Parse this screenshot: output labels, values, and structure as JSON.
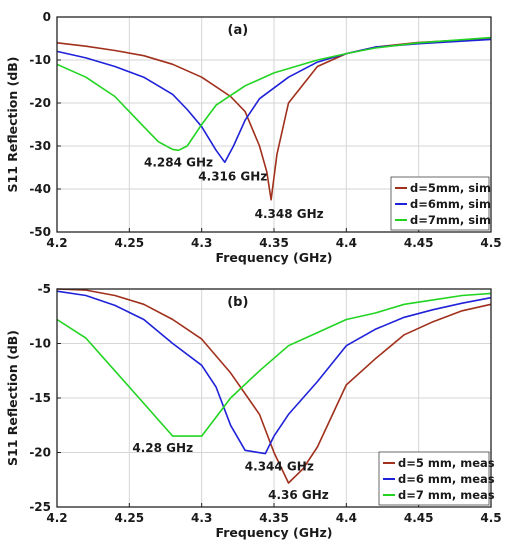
{
  "chart_data": [
    {
      "type": "line",
      "panel_label": "(a)",
      "xlabel": "Frequency (GHz)",
      "ylabel": "S11 Reflection (dB)",
      "xlim": [
        4.2,
        4.5
      ],
      "ylim": [
        -50,
        0
      ],
      "xticks": [
        4.2,
        4.25,
        4.3,
        4.35,
        4.4,
        4.45,
        4.5
      ],
      "xtick_labels": [
        "4.2",
        "4.25",
        "4.3",
        "4.35",
        "4.4",
        "4.45",
        "4.5"
      ],
      "yticks": [
        0,
        -10,
        -20,
        -30,
        -40,
        -50
      ],
      "ytick_labels": [
        "0",
        "-10",
        "-20",
        "-30",
        "-40",
        "-50"
      ],
      "grid": true,
      "legend_position": "bottom-right",
      "series": [
        {
          "name": "d=5mm, sim",
          "color": "#a0301c",
          "x": [
            4.2,
            4.22,
            4.24,
            4.26,
            4.28,
            4.3,
            4.32,
            4.33,
            4.34,
            4.345,
            4.348,
            4.352,
            4.36,
            4.38,
            4.4,
            4.42,
            4.45,
            4.5
          ],
          "y": [
            -6,
            -6.8,
            -7.8,
            -9,
            -11,
            -14,
            -18.5,
            -22,
            -30,
            -36,
            -42.5,
            -32,
            -20,
            -11.5,
            -8.5,
            -7,
            -5.9,
            -5
          ]
        },
        {
          "name": "d=6mm, sim",
          "color": "#1f22d8",
          "x": [
            4.2,
            4.22,
            4.24,
            4.26,
            4.28,
            4.29,
            4.3,
            4.31,
            4.316,
            4.322,
            4.33,
            4.34,
            4.36,
            4.38,
            4.4,
            4.42,
            4.45,
            4.5
          ],
          "y": [
            -8,
            -9.5,
            -11.5,
            -14,
            -18,
            -21.5,
            -25.5,
            -31,
            -33.8,
            -30,
            -24,
            -19,
            -14,
            -10.5,
            -8.5,
            -7,
            -6.2,
            -5.2
          ]
        },
        {
          "name": "d=7mm, sim",
          "color": "#22d422",
          "x": [
            4.2,
            4.22,
            4.24,
            4.25,
            4.26,
            4.27,
            4.28,
            4.284,
            4.29,
            4.3,
            4.31,
            4.33,
            4.35,
            4.38,
            4.4,
            4.42,
            4.45,
            4.5
          ],
          "y": [
            -11,
            -14,
            -18.5,
            -22,
            -25.5,
            -29,
            -30.8,
            -31,
            -30,
            -25,
            -20.5,
            -16,
            -13,
            -10,
            -8.5,
            -7.2,
            -6,
            -4.8
          ]
        }
      ],
      "annotations": [
        {
          "text": "4.284 GHz",
          "x": 4.284,
          "y": -31
        },
        {
          "text": "4.316 GHz",
          "x": 4.316,
          "y": -33.8
        },
        {
          "text": "4.348 GHz",
          "x": 4.348,
          "y": -42.5
        }
      ]
    },
    {
      "type": "line",
      "panel_label": "(b)",
      "xlabel": "Frequency (GHz)",
      "ylabel": "S11 Reflection (dB)",
      "xlim": [
        4.2,
        4.5
      ],
      "ylim": [
        -25,
        -5
      ],
      "xticks": [
        4.2,
        4.25,
        4.3,
        4.35,
        4.4,
        4.45,
        4.5
      ],
      "xtick_labels": [
        "4.2",
        "4.25",
        "4.3",
        "4.35",
        "4.4",
        "4.45",
        "4.5"
      ],
      "yticks": [
        -5,
        -10,
        -15,
        -20,
        -25
      ],
      "ytick_labels": [
        "-5",
        "-10",
        "-15",
        "-20",
        "-25"
      ],
      "grid": true,
      "legend_position": "bottom-right",
      "series": [
        {
          "name": "d=5 mm, meas",
          "color": "#a0301c",
          "x": [
            4.2,
            4.22,
            4.24,
            4.26,
            4.28,
            4.3,
            4.32,
            4.34,
            4.35,
            4.36,
            4.37,
            4.38,
            4.4,
            4.42,
            4.44,
            4.46,
            4.48,
            4.5
          ],
          "y": [
            -5,
            -5.1,
            -5.6,
            -6.4,
            -7.8,
            -9.6,
            -12.7,
            -16.5,
            -20,
            -22.8,
            -21.5,
            -19.5,
            -13.8,
            -11.4,
            -9.2,
            -8,
            -7,
            -6.4
          ]
        },
        {
          "name": "d=6 mm, meas",
          "color": "#1f22d8",
          "x": [
            4.2,
            4.22,
            4.24,
            4.26,
            4.28,
            4.3,
            4.31,
            4.32,
            4.33,
            4.344,
            4.35,
            4.36,
            4.38,
            4.4,
            4.42,
            4.44,
            4.46,
            4.48,
            4.5
          ],
          "y": [
            -5.2,
            -5.6,
            -6.5,
            -7.8,
            -10,
            -12,
            -14,
            -17.5,
            -19.8,
            -20.1,
            -18.5,
            -16.5,
            -13.5,
            -10.2,
            -8.7,
            -7.6,
            -6.9,
            -6.3,
            -5.8
          ]
        },
        {
          "name": "d=7 mm, meas",
          "color": "#22d422",
          "x": [
            4.2,
            4.22,
            4.24,
            4.26,
            4.28,
            4.29,
            4.3,
            4.32,
            4.34,
            4.36,
            4.38,
            4.4,
            4.42,
            4.44,
            4.46,
            4.48,
            4.5
          ],
          "y": [
            -7.8,
            -9.5,
            -12.5,
            -15.5,
            -18.5,
            -18.5,
            -18.5,
            -15,
            -12.5,
            -10.2,
            -9,
            -7.8,
            -7.2,
            -6.4,
            -6,
            -5.6,
            -5.4
          ]
        }
      ],
      "annotations": [
        {
          "text": "4.28 GHz",
          "x": 4.28,
          "y": -18.5
        },
        {
          "text": "4.344 GHz",
          "x": 4.344,
          "y": -20.1
        },
        {
          "text": "4.36 GHz",
          "x": 4.36,
          "y": -22.8
        }
      ]
    }
  ]
}
